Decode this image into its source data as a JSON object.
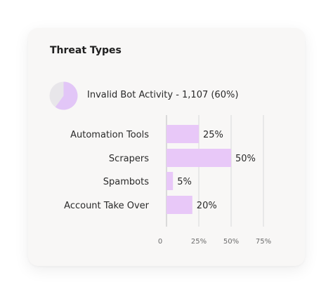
{
  "card": {
    "title": "Threat Types"
  },
  "summary": {
    "text": "Invalid Bot Activity - 1,107 (60%)",
    "pie_fraction": 0.6,
    "pie_color": "#e2c6f7",
    "pie_bg_color": "#e8e6ea"
  },
  "chart_data": {
    "type": "bar",
    "orientation": "horizontal",
    "categories": [
      "Automation Tools",
      "Scrapers",
      "Spambots",
      "Account Take Over"
    ],
    "values": [
      25,
      50,
      5,
      20
    ],
    "value_labels": [
      "25%",
      "50%",
      "5%",
      "20%"
    ],
    "xlim": [
      0,
      75
    ],
    "ticks": [
      0,
      25,
      50,
      75
    ],
    "tick_labels": [
      "0",
      "25%",
      "50%",
      "75%"
    ],
    "grid": true,
    "bar_color": "#e8c8f8"
  }
}
